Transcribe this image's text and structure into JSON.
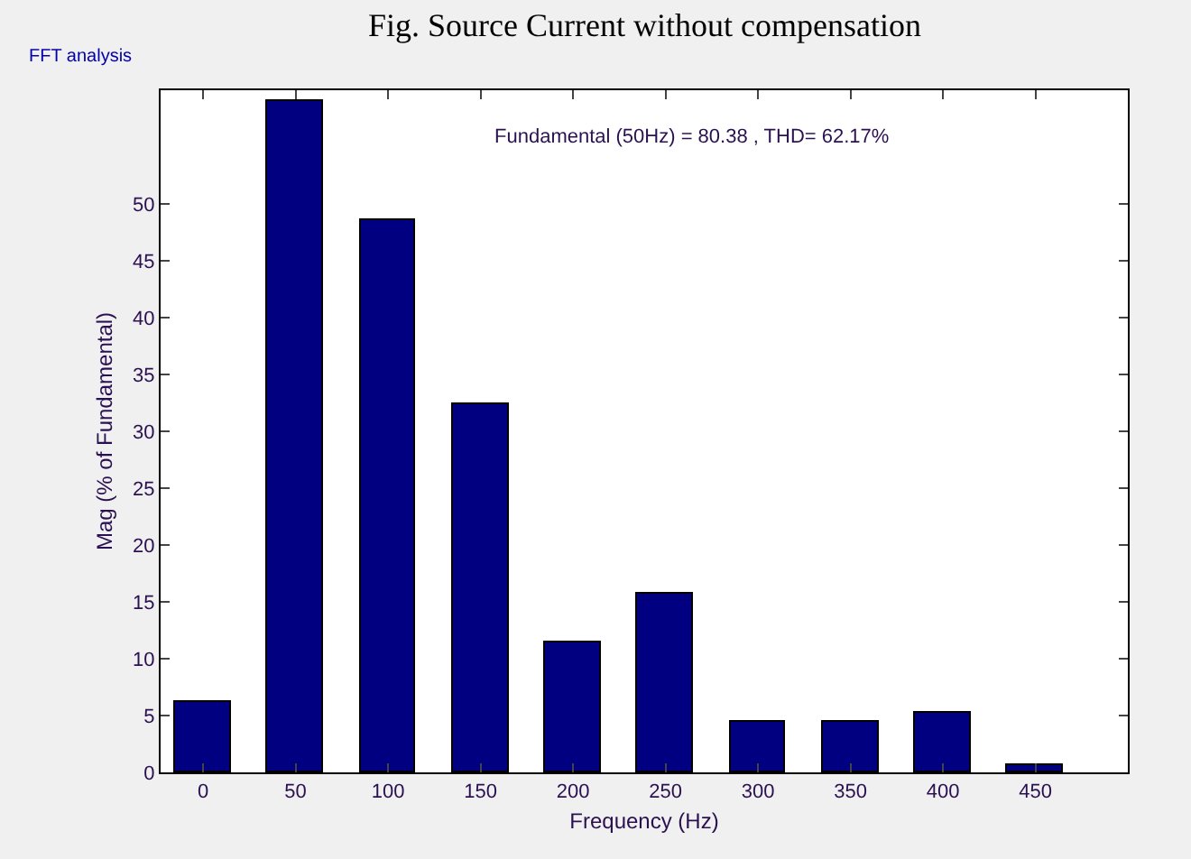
{
  "chart_data": {
    "type": "bar",
    "title": "Fig. Source Current without compensation",
    "subtitle": "Fundamental (50Hz) = 80.38 , THD= 62.17%",
    "xlabel": "Frequency (Hz)",
    "ylabel": "Mag (% of Fundamental)",
    "annotations": [
      "FFT analysis"
    ],
    "x": [
      0,
      50,
      100,
      150,
      200,
      250,
      300,
      350,
      400,
      450
    ],
    "values": [
      6.2,
      59,
      48.5,
      32.4,
      11.5,
      15.7,
      4.5,
      4.5,
      5.2,
      0.7
    ],
    "color": "#000080",
    "xlim": [
      -23,
      500
    ],
    "xticks": [
      0,
      50,
      100,
      150,
      200,
      250,
      300,
      350,
      400,
      450
    ],
    "ylim": [
      0,
      60
    ],
    "yticks": [
      0,
      5,
      10,
      15,
      20,
      25,
      30,
      35,
      40,
      45,
      50
    ]
  }
}
